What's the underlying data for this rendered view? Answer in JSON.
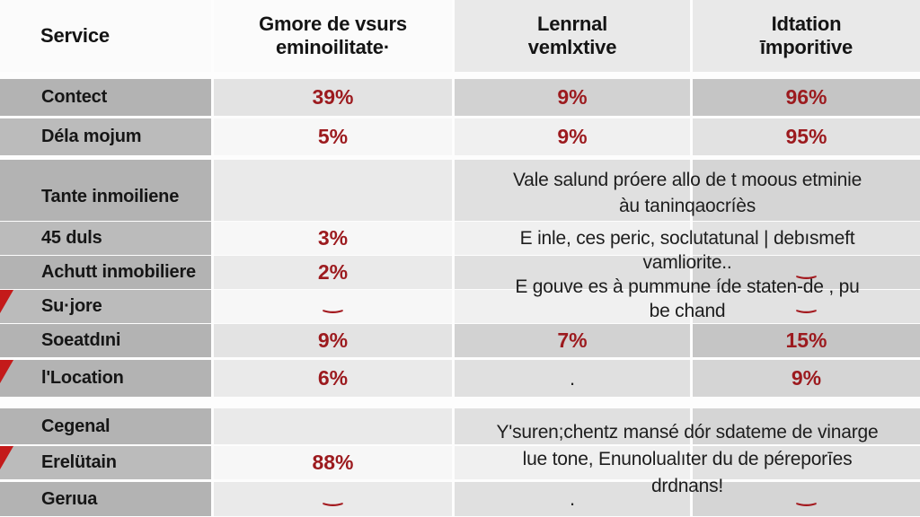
{
  "header": {
    "col1": "Service",
    "col2_line1": "Gmore de vsurs",
    "col2_line2": "eminoilitate·",
    "col3_line1": "Lenrnal",
    "col3_line2": "vemlxtive",
    "col4_line1": "Idtation",
    "col4_line2": "īmporitive"
  },
  "rows": {
    "contect": {
      "label": "Contect",
      "v1": "39%",
      "v2": "9%",
      "v3": "96%"
    },
    "dela": {
      "label": "Déla mojum",
      "v1": "5%",
      "v2": "9%",
      "v3": "95%"
    },
    "tante": {
      "label": "Tante inmoiliene"
    },
    "duls": {
      "label": "45 duls",
      "v1": "3%"
    },
    "achutt": {
      "label": "Achutt inmobiliere",
      "v1": "2%",
      "v3": "‿"
    },
    "sujore": {
      "label": "Su·jore",
      "v1": "‿"
    },
    "soeatdini": {
      "label": "Soeatdıni",
      "v1": "9%",
      "v2": "7%",
      "v3": "15%"
    },
    "location": {
      "label": "l'Location",
      "v1": "6%",
      "v2": ".",
      "v3": "9%"
    },
    "cegenal": {
      "label": "Cegenal"
    },
    "erelutain": {
      "label": "Erelütain",
      "v1": "88%"
    },
    "gerua": {
      "label": "Gerıua",
      "v1": "‿",
      "v2": ".",
      "v3": "‿"
    }
  },
  "notes": {
    "note1": {
      "line1": "Vale salund próere allo de t moous etminie",
      "line2": "àu taninqaocríès"
    },
    "note2": {
      "line1": "E inle, ces peric, soclutatunal | debısmeft",
      "line2": "vamliorite..",
      "line3": "E gouve es à pummune íde staten-de , pu",
      "line4": "be chand"
    },
    "note3": {
      "line1": "Y'suren;chentz mansé dór sdateme de vinarge",
      "line2": "lue tone, Enunolualıter du de péreporīes",
      "line3": "drdnans!"
    }
  },
  "colors": {
    "accent_red": "#9c1a1e",
    "marker_red": "#c41a1a",
    "col1_gray": "#b6b6b6"
  },
  "chart_data": {
    "type": "table",
    "title": "",
    "columns": [
      "Service",
      "Gmore de vsurs eminoilitate·",
      "Lenrnal vemlxtive",
      "Idtation īmporitive"
    ],
    "rows": [
      [
        "Contect",
        "39%",
        "9%",
        "96%"
      ],
      [
        "Déla mojum",
        "5%",
        "9%",
        "95%"
      ],
      [
        "Tante inmoiliene",
        "",
        "Vale salund próere allo de t moous etminie àu taninqaocríès",
        ""
      ],
      [
        "45 duls",
        "3%",
        "E inle, ces peric, soclutatunal | debısmeft vamliorite..",
        ""
      ],
      [
        "Achutt inmobiliere",
        "2%",
        "",
        "‿"
      ],
      [
        "Su·jore",
        "‿",
        "E gouve es à pummune íde staten-de , pu be chand",
        "‿"
      ],
      [
        "Soeatdıni",
        "9%",
        "7%",
        "15%"
      ],
      [
        "l'Location",
        "6%",
        ".",
        "9%"
      ],
      [
        "Cegenal",
        "",
        "Y'suren;chentz mansé dór sdateme de vinarge",
        ""
      ],
      [
        "Erelütain",
        "88%",
        "lue tone, Enunolualıter du de péreporīes",
        ""
      ],
      [
        "Gerıua",
        "‿",
        ". drdnans!",
        "‿"
      ]
    ],
    "notes_marked_rows": [
      "Su·jore",
      "l'Location",
      "Erelütain"
    ],
    "legend_position": "none",
    "grid": false
  }
}
